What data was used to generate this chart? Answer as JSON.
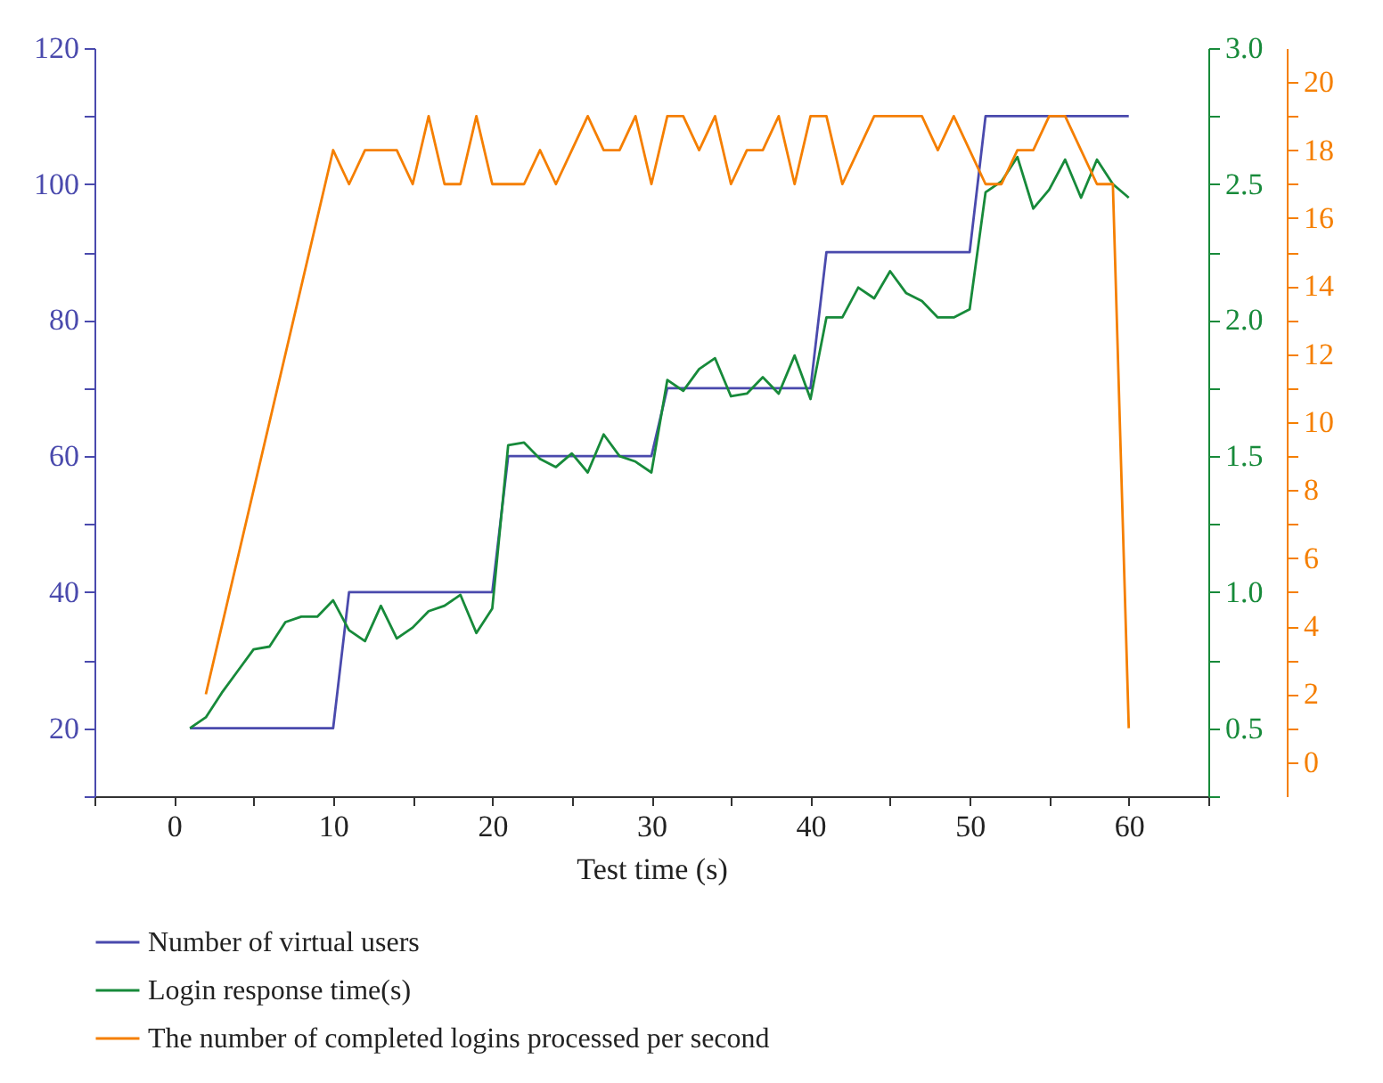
{
  "chart_data": {
    "type": "line",
    "xlabel": "Test time (s)",
    "x": [
      1,
      2,
      3,
      4,
      5,
      6,
      7,
      8,
      9,
      10,
      11,
      12,
      13,
      14,
      15,
      16,
      17,
      18,
      19,
      20,
      21,
      22,
      23,
      24,
      25,
      26,
      27,
      28,
      29,
      30,
      31,
      32,
      33,
      34,
      35,
      36,
      37,
      38,
      39,
      40,
      41,
      42,
      43,
      44,
      45,
      46,
      47,
      48,
      49,
      50,
      51,
      52,
      53,
      54,
      55,
      56,
      57,
      58,
      59,
      60
    ],
    "series": [
      {
        "name": "Number of virtual users",
        "color": "#4a4aad",
        "values": [
          20,
          20,
          20,
          20,
          20,
          20,
          20,
          20,
          20,
          20,
          40,
          40,
          40,
          40,
          40,
          40,
          40,
          40,
          40,
          40,
          60,
          60,
          60,
          60,
          60,
          60,
          60,
          60,
          60,
          60,
          70,
          70,
          70,
          70,
          70,
          70,
          70,
          70,
          70,
          70,
          90,
          90,
          90,
          90,
          90,
          90,
          90,
          90,
          90,
          90,
          110,
          110,
          110,
          110,
          110,
          110,
          110,
          110,
          110,
          110
        ]
      },
      {
        "name": "Login response time(s)",
        "color": "#178a3a",
        "axis": "y2",
        "values": [
          0.5,
          0.54,
          0.63,
          0.71,
          0.79,
          0.8,
          0.89,
          0.91,
          0.91,
          0.97,
          0.86,
          0.82,
          0.95,
          0.83,
          0.87,
          0.93,
          0.95,
          0.99,
          0.85,
          0.94,
          1.54,
          1.55,
          1.49,
          1.46,
          1.51,
          1.44,
          1.58,
          1.5,
          1.48,
          1.44,
          1.78,
          1.74,
          1.82,
          1.86,
          1.72,
          1.73,
          1.79,
          1.73,
          1.87,
          1.71,
          2.01,
          2.01,
          2.12,
          2.08,
          2.18,
          2.1,
          2.07,
          2.01,
          2.01,
          2.04,
          2.47,
          2.51,
          2.6,
          2.41,
          2.48,
          2.59,
          2.45,
          2.59,
          2.5,
          2.45
        ]
      },
      {
        "name": "The number of completed logins processed per second",
        "color": "#f57f00",
        "axis": "y3",
        "x": [
          2,
          10,
          11,
          12,
          13,
          14,
          15,
          16,
          17,
          18,
          19,
          20,
          21,
          22,
          23,
          24,
          25,
          26,
          27,
          28,
          29,
          30,
          31,
          32,
          33,
          34,
          35,
          36,
          37,
          38,
          39,
          40,
          41,
          42,
          43,
          44,
          45,
          46,
          47,
          48,
          49,
          50,
          51,
          52,
          53,
          54,
          55,
          56,
          57,
          58,
          59,
          60
        ],
        "values": [
          2,
          18,
          17,
          18,
          18,
          18,
          17,
          19,
          17,
          17,
          19,
          17,
          17,
          17,
          18,
          17,
          18,
          19,
          18,
          18,
          19,
          17,
          19,
          19,
          18,
          19,
          17,
          18,
          18,
          19,
          17,
          19,
          19,
          17,
          18,
          19,
          19,
          19,
          19,
          18,
          19,
          18,
          17,
          17,
          18,
          18,
          19,
          19,
          18,
          17,
          17,
          1
        ]
      }
    ],
    "xlim": [
      -5,
      65
    ],
    "xticks": [
      {
        "value": -5,
        "label": null
      },
      0,
      {
        "value": 5,
        "label": null
      },
      10,
      {
        "value": 15,
        "label": null
      },
      20,
      {
        "value": 25,
        "label": null
      },
      30,
      {
        "value": 35,
        "label": null
      },
      40,
      {
        "value": 45,
        "label": null
      },
      50,
      {
        "value": 55,
        "label": null
      },
      60,
      {
        "value": 65,
        "label": null
      }
    ],
    "ylim": [
      10,
      120
    ],
    "yticks": [
      {
        "value": 10,
        "label": null
      },
      20,
      {
        "value": 30,
        "label": null
      },
      40,
      {
        "value": 50,
        "label": null
      },
      60,
      {
        "value": 70,
        "label": null
      },
      80,
      {
        "value": 90,
        "label": null
      },
      100,
      {
        "value": 110,
        "label": null
      },
      120
    ],
    "y2lim": [
      0.25,
      3.0
    ],
    "y2ticks": [
      {
        "value": 0.25,
        "label": null
      },
      {
        "value": 0.5,
        "label": "0.5"
      },
      {
        "value": 0.75,
        "label": null
      },
      {
        "value": 1.0,
        "label": "1.0"
      },
      {
        "value": 1.25,
        "label": null
      },
      {
        "value": 1.5,
        "label": "1.5"
      },
      {
        "value": 1.75,
        "label": null
      },
      {
        "value": 2.0,
        "label": "2.0"
      },
      {
        "value": 2.25,
        "label": null
      },
      {
        "value": 2.5,
        "label": "2.5"
      },
      {
        "value": 2.75,
        "label": null
      },
      {
        "value": 3.0,
        "label": "3.0"
      }
    ],
    "y3lim": [
      -1,
      21
    ],
    "y3ticks": [
      0,
      {
        "value": 1,
        "label": null
      },
      2,
      {
        "value": 3,
        "label": null
      },
      4,
      {
        "value": 5,
        "label": null
      },
      6,
      {
        "value": 7,
        "label": null
      },
      8,
      {
        "value": 9,
        "label": null
      },
      10,
      {
        "value": 11,
        "label": null
      },
      12,
      {
        "value": 13,
        "label": null
      },
      14,
      {
        "value": 15,
        "label": null
      },
      16,
      {
        "value": 17,
        "label": null
      },
      18,
      {
        "value": 19,
        "label": null
      },
      20
    ],
    "legend": "bottom",
    "grid": false,
    "marker": "none",
    "line_style": "solid"
  }
}
